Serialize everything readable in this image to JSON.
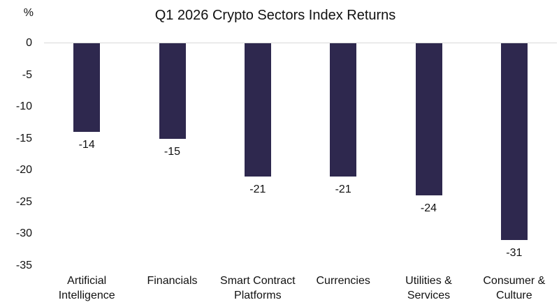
{
  "chart_data": {
    "type": "bar",
    "title": "Q1 2026 Crypto Sectors Index Returns",
    "y_axis_unit": "%",
    "categories": [
      "Artificial Intelligence",
      "Financials",
      "Smart Contract Platforms",
      "Currencies",
      "Utilities & Services",
      "Consumer & Culture"
    ],
    "values": [
      -14,
      -15,
      -21,
      -21,
      -24,
      -31
    ],
    "data_labels": [
      "-14",
      "-15",
      "-21",
      "-21",
      "-24",
      "-31"
    ],
    "y_ticks": [
      0,
      -5,
      -10,
      -15,
      -20,
      -25,
      -30,
      -35
    ],
    "ylim": [
      -35,
      0
    ],
    "xlabel": "",
    "ylabel": "%",
    "legend": "none",
    "grid": "zero-axis-line-only",
    "colors": {
      "bar": "#2E284E",
      "zero_line": "#D9D9D9",
      "text": "#111111",
      "background": "#FFFFFF"
    }
  }
}
